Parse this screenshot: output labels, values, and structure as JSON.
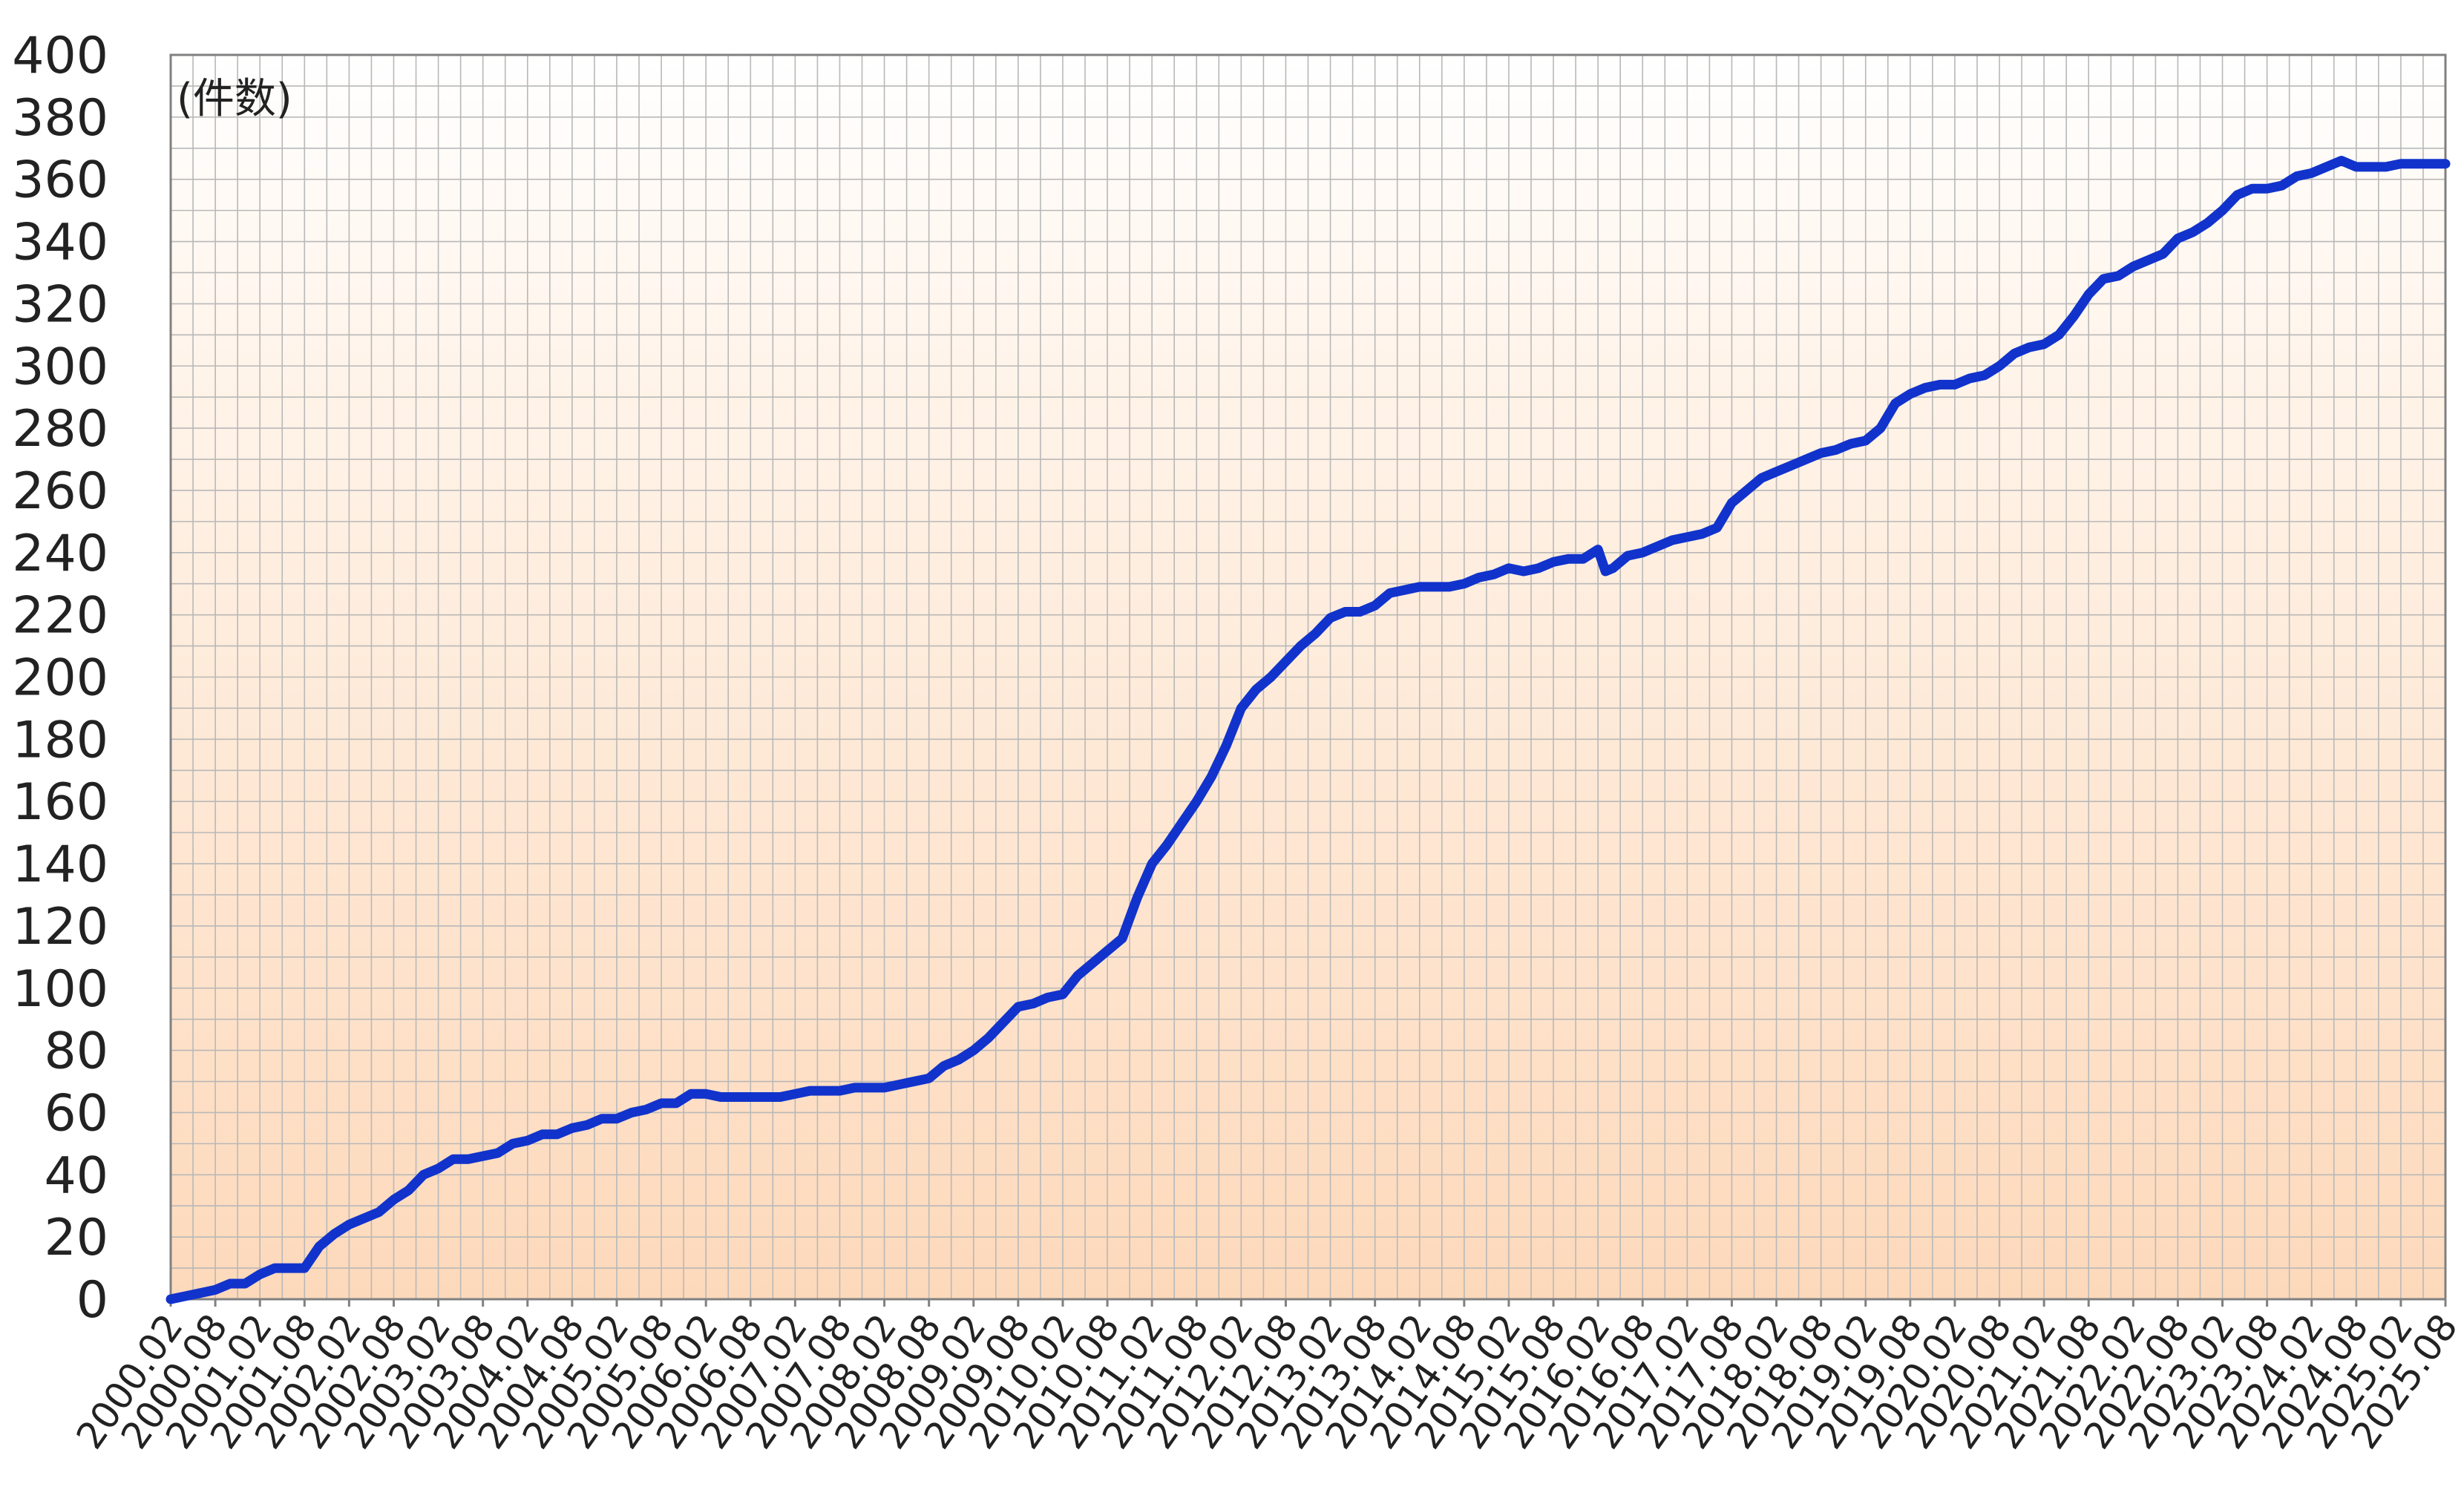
{
  "chart_data": {
    "type": "line",
    "unit_label": "(件数)",
    "ylim": [
      0,
      400
    ],
    "y_ticks": [
      0,
      20,
      40,
      60,
      80,
      100,
      120,
      140,
      160,
      180,
      200,
      220,
      240,
      260,
      280,
      300,
      320,
      340,
      360,
      380,
      400
    ],
    "x_range": [
      "2000.02",
      "2025.08"
    ],
    "x_tick_labels": [
      "2000.02",
      "2000.08",
      "2001.02",
      "2001.08",
      "2002.02",
      "2002.08",
      "2003.02",
      "2003.08",
      "2004.02",
      "2004.08",
      "2005.02",
      "2005.08",
      "2006.02",
      "2006.08",
      "2007.02",
      "2007.08",
      "2008.02",
      "2008.08",
      "2009.02",
      "2009.08",
      "2010.02",
      "2010.08",
      "2011.02",
      "2011.08",
      "2012.02",
      "2012.08",
      "2013.02",
      "2013.08",
      "2014.02",
      "2014.08",
      "2015.02",
      "2015.08",
      "2016.02",
      "2016.08",
      "2017.02",
      "2017.08",
      "2018.02",
      "2018.08",
      "2019.02",
      "2019.08",
      "2020.02",
      "2020.08",
      "2021.02",
      "2021.08",
      "2022.02",
      "2022.08",
      "2023.02",
      "2023.08",
      "2024.02",
      "2024.08",
      "2025.02",
      "2025.08"
    ],
    "grid": true,
    "line_color": "#1133cc",
    "background_gradient": [
      "#ffffff",
      "#fdd9bb"
    ],
    "series": [
      {
        "points": [
          [
            "2000.02",
            0
          ],
          [
            "2000.04",
            1
          ],
          [
            "2000.06",
            2
          ],
          [
            "2000.08",
            3
          ],
          [
            "2000.10",
            5
          ],
          [
            "2000.12",
            5
          ],
          [
            "2001.02",
            8
          ],
          [
            "2001.04",
            10
          ],
          [
            "2001.06",
            10
          ],
          [
            "2001.08",
            10
          ],
          [
            "2001.10",
            17
          ],
          [
            "2001.12",
            21
          ],
          [
            "2002.02",
            24
          ],
          [
            "2002.04",
            26
          ],
          [
            "2002.06",
            28
          ],
          [
            "2002.08",
            32
          ],
          [
            "2002.10",
            35
          ],
          [
            "2002.12",
            40
          ],
          [
            "2003.02",
            42
          ],
          [
            "2003.04",
            45
          ],
          [
            "2003.06",
            45
          ],
          [
            "2003.08",
            46
          ],
          [
            "2003.10",
            47
          ],
          [
            "2003.12",
            50
          ],
          [
            "2004.02",
            51
          ],
          [
            "2004.04",
            53
          ],
          [
            "2004.06",
            53
          ],
          [
            "2004.08",
            55
          ],
          [
            "2004.10",
            56
          ],
          [
            "2004.12",
            58
          ],
          [
            "2005.02",
            58
          ],
          [
            "2005.04",
            60
          ],
          [
            "2005.06",
            61
          ],
          [
            "2005.08",
            63
          ],
          [
            "2005.10",
            63
          ],
          [
            "2005.12",
            66
          ],
          [
            "2006.02",
            66
          ],
          [
            "2006.04",
            65
          ],
          [
            "2006.06",
            65
          ],
          [
            "2006.08",
            65
          ],
          [
            "2006.10",
            65
          ],
          [
            "2006.12",
            65
          ],
          [
            "2007.02",
            66
          ],
          [
            "2007.04",
            67
          ],
          [
            "2007.06",
            67
          ],
          [
            "2007.08",
            67
          ],
          [
            "2007.10",
            68
          ],
          [
            "2007.12",
            68
          ],
          [
            "2008.02",
            68
          ],
          [
            "2008.04",
            69
          ],
          [
            "2008.06",
            70
          ],
          [
            "2008.08",
            71
          ],
          [
            "2008.10",
            75
          ],
          [
            "2008.12",
            77
          ],
          [
            "2009.02",
            80
          ],
          [
            "2009.04",
            84
          ],
          [
            "2009.06",
            89
          ],
          [
            "2009.08",
            94
          ],
          [
            "2009.10",
            95
          ],
          [
            "2009.12",
            97
          ],
          [
            "2010.02",
            98
          ],
          [
            "2010.04",
            104
          ],
          [
            "2010.06",
            108
          ],
          [
            "2010.08",
            112
          ],
          [
            "2010.10",
            116
          ],
          [
            "2010.12",
            129
          ],
          [
            "2011.02",
            140
          ],
          [
            "2011.04",
            146
          ],
          [
            "2011.06",
            153
          ],
          [
            "2011.08",
            160
          ],
          [
            "2011.10",
            168
          ],
          [
            "2011.12",
            178
          ],
          [
            "2012.02",
            190
          ],
          [
            "2012.04",
            196
          ],
          [
            "2012.06",
            200
          ],
          [
            "2012.08",
            205
          ],
          [
            "2012.10",
            210
          ],
          [
            "2012.12",
            214
          ],
          [
            "2013.02",
            219
          ],
          [
            "2013.04",
            221
          ],
          [
            "2013.06",
            221
          ],
          [
            "2013.08",
            223
          ],
          [
            "2013.10",
            227
          ],
          [
            "2013.12",
            228
          ],
          [
            "2014.02",
            229
          ],
          [
            "2014.04",
            229
          ],
          [
            "2014.06",
            229
          ],
          [
            "2014.08",
            230
          ],
          [
            "2014.10",
            232
          ],
          [
            "2014.12",
            233
          ],
          [
            "2015.02",
            235
          ],
          [
            "2015.04",
            234
          ],
          [
            "2015.06",
            235
          ],
          [
            "2015.08",
            237
          ],
          [
            "2015.10",
            238
          ],
          [
            "2015.12",
            238
          ],
          [
            "2016.02",
            241
          ],
          [
            "2016.03",
            234
          ],
          [
            "2016.04",
            235
          ],
          [
            "2016.06",
            239
          ],
          [
            "2016.08",
            240
          ],
          [
            "2016.10",
            242
          ],
          [
            "2016.12",
            244
          ],
          [
            "2017.02",
            245
          ],
          [
            "2017.04",
            246
          ],
          [
            "2017.06",
            248
          ],
          [
            "2017.08",
            256
          ],
          [
            "2017.10",
            260
          ],
          [
            "2017.12",
            264
          ],
          [
            "2018.02",
            266
          ],
          [
            "2018.04",
            268
          ],
          [
            "2018.06",
            270
          ],
          [
            "2018.08",
            272
          ],
          [
            "2018.10",
            273
          ],
          [
            "2018.12",
            275
          ],
          [
            "2019.02",
            276
          ],
          [
            "2019.04",
            280
          ],
          [
            "2019.06",
            288
          ],
          [
            "2019.08",
            291
          ],
          [
            "2019.10",
            293
          ],
          [
            "2019.12",
            294
          ],
          [
            "2020.02",
            294
          ],
          [
            "2020.04",
            296
          ],
          [
            "2020.06",
            297
          ],
          [
            "2020.08",
            300
          ],
          [
            "2020.10",
            304
          ],
          [
            "2020.12",
            306
          ],
          [
            "2021.02",
            307
          ],
          [
            "2021.04",
            310
          ],
          [
            "2021.06",
            316
          ],
          [
            "2021.08",
            323
          ],
          [
            "2021.10",
            328
          ],
          [
            "2021.12",
            329
          ],
          [
            "2022.02",
            332
          ],
          [
            "2022.04",
            334
          ],
          [
            "2022.06",
            336
          ],
          [
            "2022.08",
            341
          ],
          [
            "2022.10",
            343
          ],
          [
            "2022.12",
            346
          ],
          [
            "2023.02",
            350
          ],
          [
            "2023.04",
            355
          ],
          [
            "2023.06",
            357
          ],
          [
            "2023.08",
            357
          ],
          [
            "2023.10",
            358
          ],
          [
            "2023.12",
            361
          ],
          [
            "2024.02",
            362
          ],
          [
            "2024.04",
            364
          ],
          [
            "2024.06",
            366
          ],
          [
            "2024.08",
            364
          ],
          [
            "2024.10",
            364
          ],
          [
            "2024.12",
            364
          ],
          [
            "2025.02",
            365
          ],
          [
            "2025.04",
            365
          ],
          [
            "2025.06",
            365
          ],
          [
            "2025.08",
            365
          ]
        ]
      }
    ]
  }
}
